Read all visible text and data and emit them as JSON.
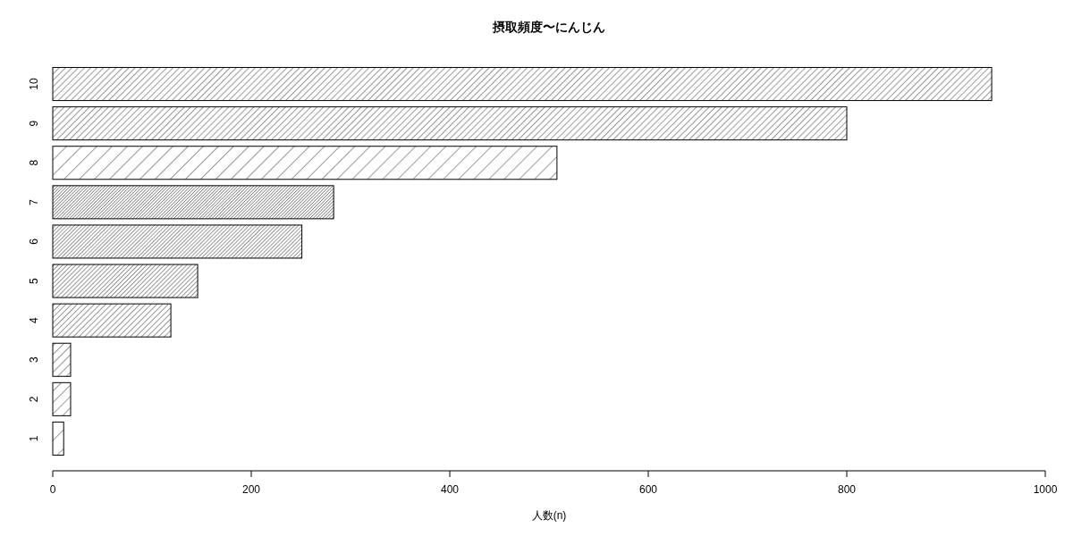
{
  "chart_data": {
    "type": "bar",
    "orientation": "horizontal",
    "title": "摂取頻度〜にんじん",
    "xlabel": "人数(n)",
    "categories": [
      "10",
      "9",
      "8",
      "7",
      "6",
      "5",
      "4",
      "3",
      "2",
      "1"
    ],
    "values": [
      946,
      800,
      508,
      283,
      251,
      146,
      119,
      18,
      18,
      11
    ],
    "color": "#000000",
    "xlim": [
      0,
      1000
    ],
    "xticks": [
      0,
      200,
      400,
      600,
      800,
      1000
    ]
  }
}
